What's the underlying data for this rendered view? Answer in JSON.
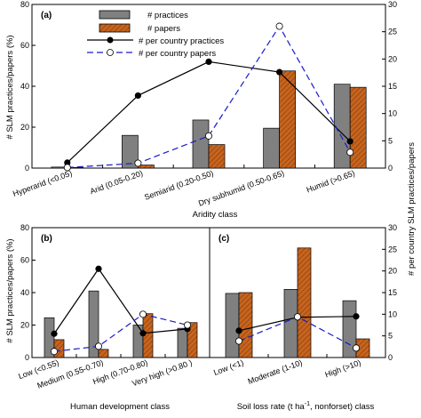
{
  "figure": {
    "left_axis_title": "# SLM practices/papers (%)",
    "right_axis_title": "# per country SLM practices/papers",
    "legend": {
      "practices": "# practices",
      "papers": "# papers",
      "pc_practices": "# per country practices",
      "pc_papers": "# per country papers"
    },
    "colors": {
      "practices_bar": "#808080",
      "papers_bar": "#c8641e",
      "pc_practices_line": "#000000",
      "pc_papers_line": "#1a1acc"
    }
  },
  "chart_data": [
    {
      "panel": "(a)",
      "type": "bar",
      "xlabel": "Aridity class",
      "categories": [
        "Hyperarid (<0.05)",
        "Arid (0.05-0.20)",
        "Semiarid (0.20-0.50)",
        "Dry subhumid (0.50-0.65)",
        "Humid (>0.65)"
      ],
      "ylim": [
        0,
        80
      ],
      "y2lim": [
        0,
        30
      ],
      "yticks": [
        0,
        20,
        40,
        60,
        80
      ],
      "y2ticks": [
        0,
        5,
        10,
        15,
        20,
        25,
        30
      ],
      "series": [
        {
          "name": "# practices",
          "kind": "bar",
          "values": [
            0.5,
            16,
            23.5,
            19.5,
            41
          ]
        },
        {
          "name": "# papers",
          "kind": "bar",
          "values": [
            0.3,
            1.5,
            11.5,
            47.5,
            39.5
          ]
        },
        {
          "name": "# per country practices",
          "kind": "line",
          "axis": "right",
          "values": [
            1,
            13.3,
            19.5,
            17.6,
            4.9
          ]
        },
        {
          "name": "# per country papers",
          "kind": "line",
          "axis": "right",
          "values": [
            0.1,
            0.9,
            5.9,
            26,
            2.9
          ]
        }
      ]
    },
    {
      "panel": "(b)",
      "type": "bar",
      "xlabel": "Human development class",
      "categories": [
        "Low (<0.55)",
        "Medium (0.55-0.70)",
        "High (0.70-0.80)",
        "Very high (>0.80 )"
      ],
      "ylim": [
        0,
        80
      ],
      "yticks": [
        0,
        20,
        40,
        60,
        80
      ],
      "series": [
        {
          "name": "# practices",
          "kind": "bar",
          "values": [
            24.5,
            41,
            20,
            18
          ]
        },
        {
          "name": "# papers",
          "kind": "bar",
          "values": [
            11,
            5,
            27,
            21.5
          ]
        },
        {
          "name": "# per country practices",
          "kind": "line",
          "axis": "right",
          "values": [
            5.5,
            20.5,
            5.6,
            6.6
          ]
        },
        {
          "name": "# per country papers",
          "kind": "line",
          "axis": "right",
          "values": [
            1.4,
            2.6,
            10,
            7.5
          ]
        }
      ]
    },
    {
      "panel": "(c)",
      "type": "bar",
      "xlabel": "Soil loss rate (t ha-1, nonforset) class",
      "categories": [
        "Low (<1)",
        "Moderate (1-10)",
        "High (>10)"
      ],
      "y2lim": [
        0,
        30
      ],
      "y2ticks": [
        0,
        5,
        10,
        15,
        20,
        25,
        30
      ],
      "series": [
        {
          "name": "# practices",
          "kind": "bar",
          "values": [
            39.5,
            42,
            35
          ]
        },
        {
          "name": "# papers",
          "kind": "bar",
          "values": [
            40,
            67.5,
            11.5
          ]
        },
        {
          "name": "# per country practices",
          "kind": "line",
          "axis": "right",
          "values": [
            6.2,
            9.3,
            9.5
          ]
        },
        {
          "name": "# per country papers",
          "kind": "line",
          "axis": "right",
          "values": [
            3.8,
            9.4,
            2.2
          ]
        }
      ]
    }
  ]
}
